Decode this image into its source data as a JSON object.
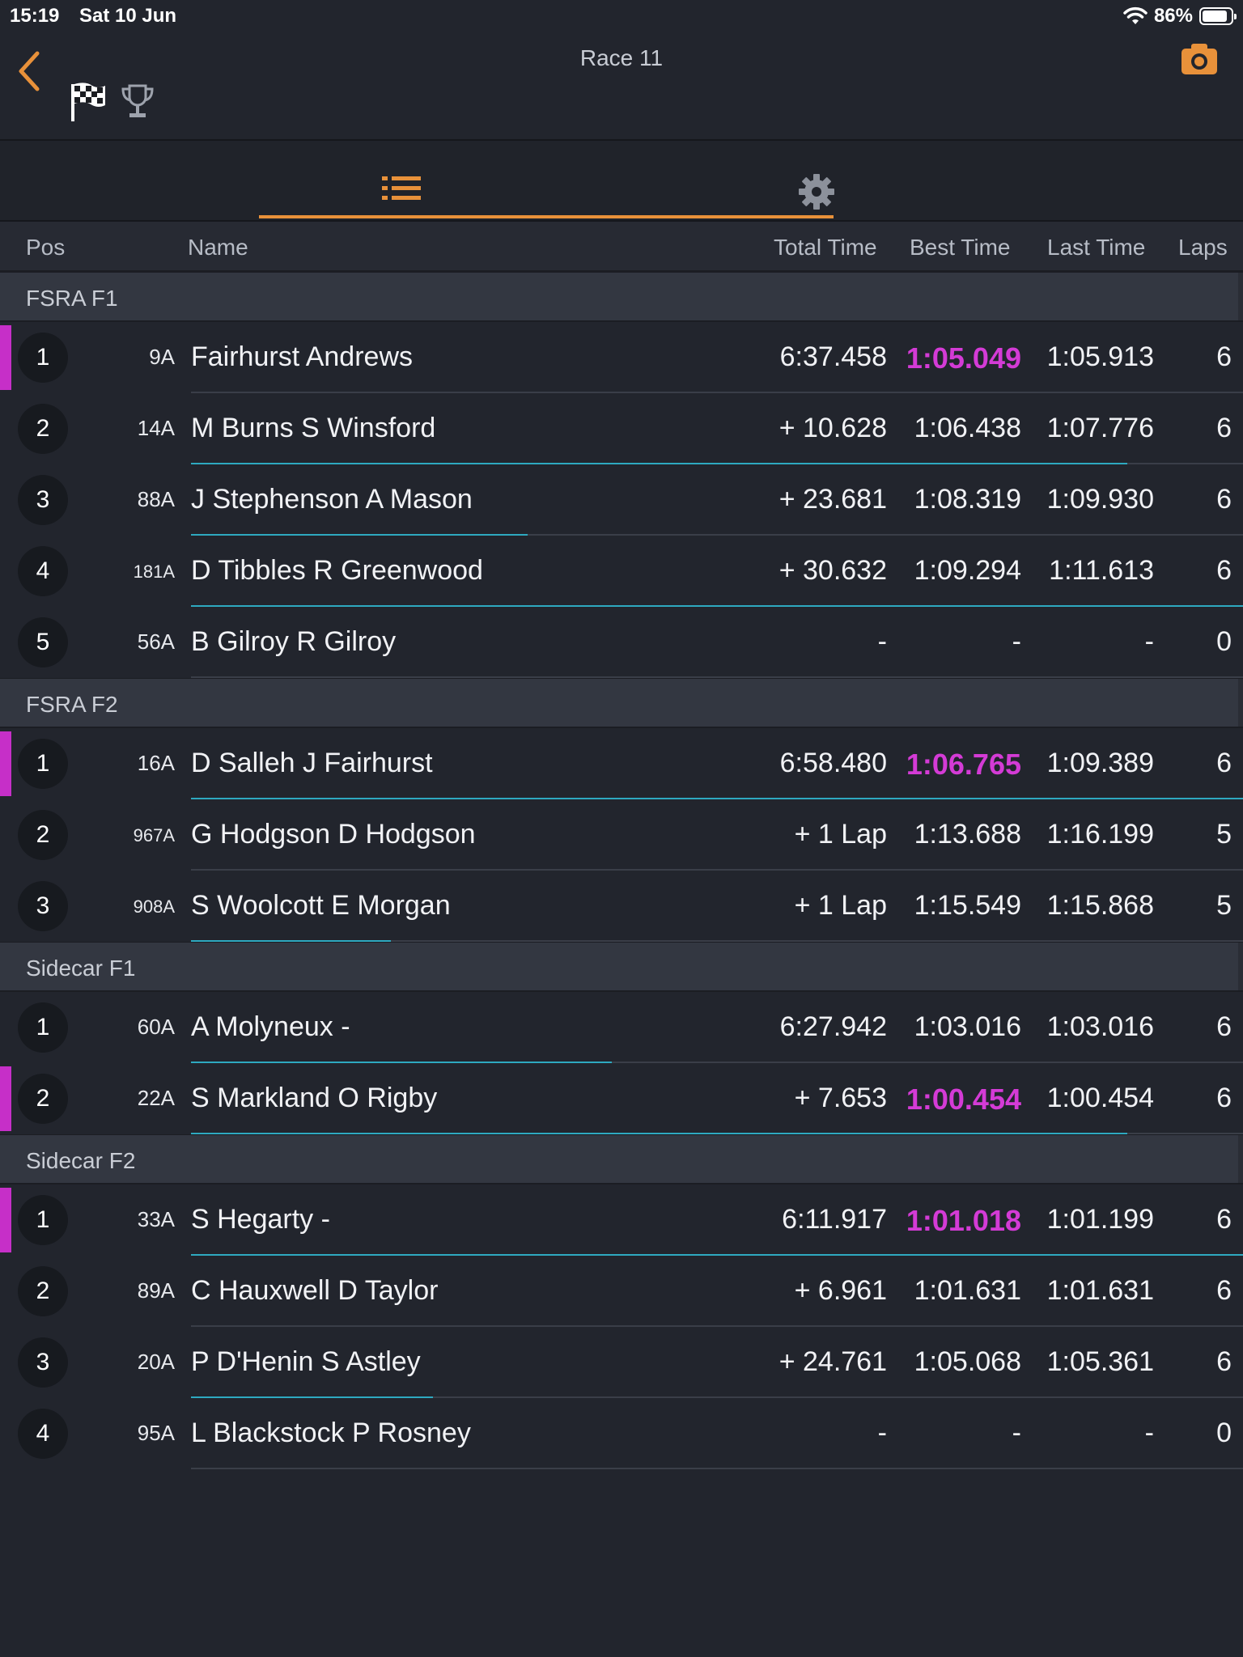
{
  "status_bar": {
    "time": "15:19",
    "date": "Sat 10 Jun",
    "battery": "86%"
  },
  "header": {
    "title": "Race 11"
  },
  "columns": {
    "pos": "Pos",
    "name": "Name",
    "total": "Total Time",
    "best": "Best Time",
    "last": "Last Time",
    "laps": "Laps"
  },
  "colors": {
    "accent": "#e8913a",
    "fastest": "#d43bd6",
    "progress": "#2ea9c0",
    "background": "#22252d"
  },
  "sections": [
    {
      "title": "FSRA F1",
      "rows": [
        {
          "pos": "1",
          "num": "9A",
          "name": "Fairhurst Andrews",
          "total": "6:37.458",
          "best": "1:05.049",
          "last": "1:05.913",
          "laps": "6",
          "fastest": true,
          "progress": 0
        },
        {
          "pos": "2",
          "num": "14A",
          "name": "M Burns S Winsford",
          "total": "+ 10.628",
          "best": "1:06.438",
          "last": "1:07.776",
          "laps": "6",
          "fastest": false,
          "progress": 0.89
        },
        {
          "pos": "3",
          "num": "88A",
          "name": "J Stephenson A Mason",
          "total": "+ 23.681",
          "best": "1:08.319",
          "last": "1:09.930",
          "laps": "6",
          "fastest": false,
          "progress": 0.32
        },
        {
          "pos": "4",
          "num": "181A",
          "name": "D Tibbles R Greenwood",
          "total": "+ 30.632",
          "best": "1:09.294",
          "last": "1:11.613",
          "laps": "6",
          "fastest": false,
          "progress": 1.0
        },
        {
          "pos": "5",
          "num": "56A",
          "name": "B Gilroy R Gilroy",
          "total": "-",
          "best": "-",
          "last": "-",
          "laps": "0",
          "fastest": false,
          "progress": 0
        }
      ]
    },
    {
      "title": "FSRA F2",
      "rows": [
        {
          "pos": "1",
          "num": "16A",
          "name": "D Salleh J Fairhurst",
          "total": "6:58.480",
          "best": "1:06.765",
          "last": "1:09.389",
          "laps": "6",
          "fastest": true,
          "progress": 1.0
        },
        {
          "pos": "2",
          "num": "967A",
          "name": "G Hodgson D Hodgson",
          "total": "+ 1 Lap",
          "best": "1:13.688",
          "last": "1:16.199",
          "laps": "5",
          "fastest": false,
          "progress": 0
        },
        {
          "pos": "3",
          "num": "908A",
          "name": "S Woolcott E Morgan",
          "total": "+ 1 Lap",
          "best": "1:15.549",
          "last": "1:15.868",
          "laps": "5",
          "fastest": false,
          "progress": 0.19
        }
      ]
    },
    {
      "title": "Sidecar F1",
      "rows": [
        {
          "pos": "1",
          "num": "60A",
          "name": "A Molyneux -",
          "total": "6:27.942",
          "best": "1:03.016",
          "last": "1:03.016",
          "laps": "6",
          "fastest": false,
          "progress": 0.4
        },
        {
          "pos": "2",
          "num": "22A",
          "name": "S Markland O Rigby",
          "total": "+ 7.653",
          "best": "1:00.454",
          "last": "1:00.454",
          "laps": "6",
          "fastest": true,
          "progress": 0.89
        }
      ]
    },
    {
      "title": "Sidecar F2",
      "rows": [
        {
          "pos": "1",
          "num": "33A",
          "name": "S Hegarty -",
          "total": "6:11.917",
          "best": "1:01.018",
          "last": "1:01.199",
          "laps": "6",
          "fastest": true,
          "progress": 1.0
        },
        {
          "pos": "2",
          "num": "89A",
          "name": "C Hauxwell D Taylor",
          "total": "+ 6.961",
          "best": "1:01.631",
          "last": "1:01.631",
          "laps": "6",
          "fastest": false,
          "progress": 0
        },
        {
          "pos": "3",
          "num": "20A",
          "name": "P D'Henin S Astley",
          "total": "+ 24.761",
          "best": "1:05.068",
          "last": "1:05.361",
          "laps": "6",
          "fastest": false,
          "progress": 0.23
        },
        {
          "pos": "4",
          "num": "95A",
          "name": "L Blackstock P Rosney",
          "total": "-",
          "best": "-",
          "last": "-",
          "laps": "0",
          "fastest": false,
          "progress": 0
        }
      ]
    }
  ]
}
